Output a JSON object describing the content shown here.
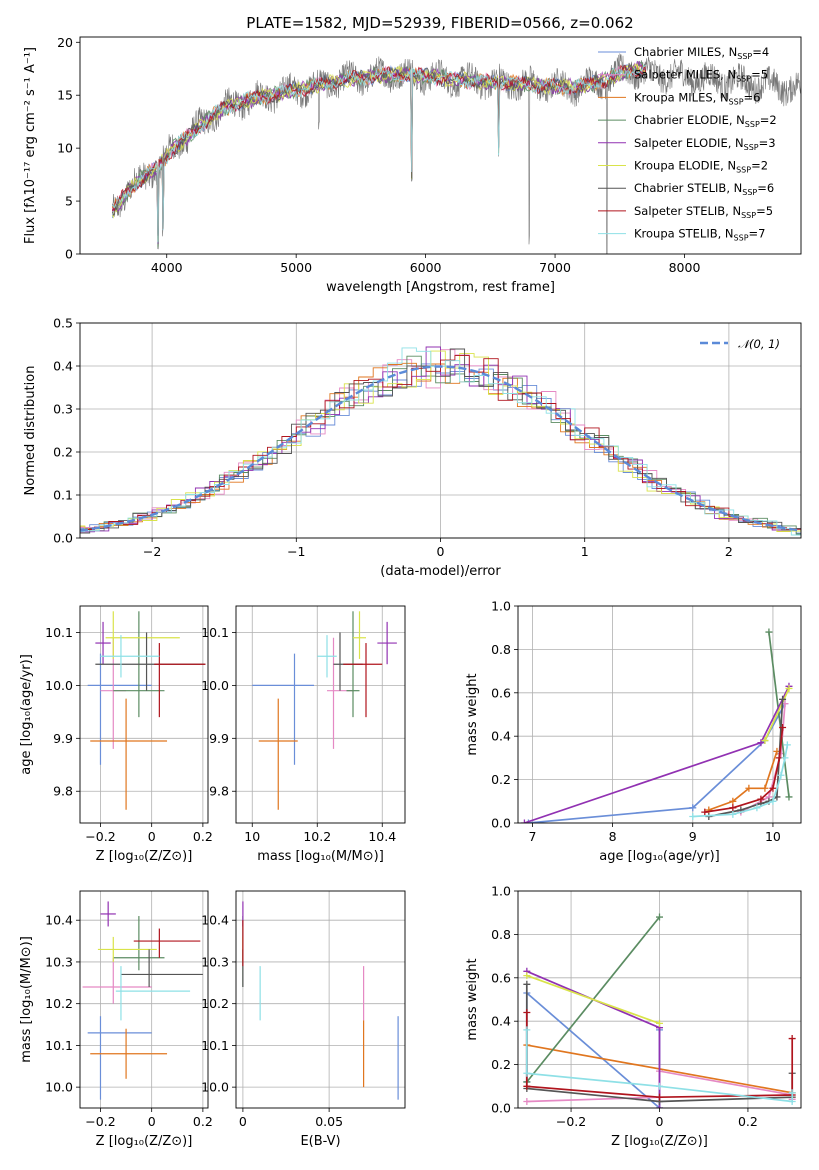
{
  "figure": {
    "title": "PLATE=1582, MJD=52939, FIBERID=0566, z=0.062"
  },
  "series_styles": [
    {
      "name": "Chabrier MILES",
      "color": "#6a8ed8"
    },
    {
      "name": "Salpeter MILES",
      "color": "#e589c4"
    },
    {
      "name": "Kroupa MILES",
      "color": "#e0761f"
    },
    {
      "name": "Chabrier ELODIE",
      "color": "#5b8c62"
    },
    {
      "name": "Salpeter ELODIE",
      "color": "#9131b2"
    },
    {
      "name": "Kroupa ELODIE",
      "color": "#d9e34a"
    },
    {
      "name": "Chabrier STELIB",
      "color": "#555555"
    },
    {
      "name": "Salpeter STELIB",
      "color": "#b0141d"
    },
    {
      "name": "Kroupa STELIB",
      "color": "#8ee0e6"
    }
  ],
  "chart_data": [
    {
      "id": "spectrum",
      "type": "line",
      "xlabel": "wavelength [Angstrom, rest frame]",
      "ylabel": "Flux [fλ10⁻¹⁷ erg cm⁻² s⁻¹ A⁻¹]",
      "xlim": [
        3330,
        8900
      ],
      "ylim": [
        0,
        20.5
      ],
      "xticks": [
        4000,
        5000,
        6000,
        7000,
        8000
      ],
      "yticks": [
        0,
        5,
        10,
        15,
        20
      ],
      "legend": "upper-right",
      "legend_entries": [
        "Chabrier MILES, N_SSP=4",
        "Salpeter MILES, N_SSP=5",
        "Kroupa MILES, N_SSP=6",
        "Chabrier ELODIE, N_SSP=2",
        "Salpeter ELODIE, N_SSP=3",
        "Kroupa ELODIE, N_SSP=2",
        "Chabrier STELIB, N_SSP=6",
        "Salpeter STELIB, N_SSP=5",
        "Kroupa STELIB, N_SSP=7"
      ],
      "continuum": {
        "x": [
          3580,
          3700,
          3850,
          3950,
          4050,
          4200,
          4400,
          4600,
          4800,
          5000,
          5200,
          5400,
          5600,
          5800,
          6000,
          6200,
          6400,
          6600,
          6800,
          7000,
          7200,
          7400,
          7600
        ],
        "y": [
          4.0,
          6.0,
          7.5,
          8.5,
          10.0,
          11.5,
          13.5,
          14.5,
          15.0,
          15.5,
          16.0,
          16.5,
          16.8,
          17.0,
          16.8,
          16.5,
          16.3,
          16.2,
          16.0,
          15.8,
          15.8,
          16.5,
          17.5
        ]
      },
      "observed_range": [
        3580,
        9200
      ],
      "model_range": [
        3580,
        7700
      ],
      "absorption_lines": [
        {
          "x": 3934,
          "y": 0.0
        },
        {
          "x": 3969,
          "y": 1.5
        },
        {
          "x": 5176,
          "y": 11.0
        },
        {
          "x": 5893,
          "y": 6.0
        },
        {
          "x": 6563,
          "y": 9.0
        },
        {
          "x": 6800,
          "y": 0.0
        },
        {
          "x": 7400,
          "y": 0.0
        }
      ]
    },
    {
      "id": "residuals",
      "type": "histogram",
      "xlabel": "(data-model)/error",
      "ylabel": "Normed distribution",
      "xlim": [
        -2.5,
        2.5
      ],
      "ylim": [
        0,
        0.5
      ],
      "xticks": [
        -2,
        -1,
        0,
        1,
        2
      ],
      "yticks": [
        0.0,
        0.1,
        0.2,
        0.3,
        0.4,
        0.5
      ],
      "grid": true,
      "bin_width": 0.1,
      "reference_curve": {
        "name": "N(0,1)",
        "label": "𝒩(0, 1)",
        "mean": 0,
        "sigma": 1,
        "color": "#5b8ad8"
      },
      "legend": "upper-right"
    },
    {
      "id": "age-vs-Z",
      "type": "scatter-errorbar",
      "xlabel": "Z [log₁₀(Z/Z⊙)]",
      "ylabel": "age  [log₁₀(age/yr)]",
      "xlim": [
        -0.28,
        0.22
      ],
      "ylim": [
        9.74,
        10.15
      ],
      "xticks": [
        -0.2,
        0.0,
        0.2
      ],
      "yticks": [
        9.8,
        9.9,
        10.0,
        10.1
      ],
      "grid": true,
      "points": [
        {
          "x": -0.2,
          "xerr": [
            0.05,
            0.2
          ],
          "y": 10.0,
          "yerr": [
            0.15,
            0.06
          ]
        },
        {
          "x": -0.15,
          "xerr": [
            0.05,
            0.05
          ],
          "y": 9.99,
          "yerr": [
            0.11,
            0.1
          ]
        },
        {
          "x": -0.1,
          "xerr": [
            0.14,
            0.16
          ],
          "y": 9.895,
          "yerr": [
            0.13,
            0.08
          ]
        },
        {
          "x": -0.05,
          "xerr": [
            0.1,
            0.1
          ],
          "y": 9.99,
          "yerr": [
            0.05,
            0.15
          ]
        },
        {
          "x": -0.19,
          "xerr": [
            0.03,
            0.03
          ],
          "y": 10.08,
          "yerr": [
            0.04,
            0.04
          ]
        },
        {
          "x": -0.15,
          "xerr": [
            0.03,
            0.26
          ],
          "y": 10.09,
          "yerr": [
            0.04,
            0.05
          ]
        },
        {
          "x": -0.02,
          "xerr": [
            0.2,
            0.23
          ],
          "y": 10.04,
          "yerr": [
            0.05,
            0.06
          ]
        },
        {
          "x": 0.03,
          "xerr": [
            0.02,
            0.18
          ],
          "y": 10.04,
          "yerr": [
            0.1,
            0.04
          ]
        },
        {
          "x": -0.12,
          "xerr": [
            0.08,
            0.15
          ],
          "y": 10.055,
          "yerr": [
            0.04,
            0.04
          ]
        }
      ]
    },
    {
      "id": "age-vs-mass",
      "type": "scatter-errorbar",
      "xlabel": "mass [log₁₀(M/M⊙)]",
      "ylabel": "",
      "xlim": [
        9.95,
        10.47
      ],
      "ylim": [
        9.74,
        10.15
      ],
      "xticks": [
        10.0,
        10.2,
        10.4
      ],
      "yticks": [
        9.8,
        9.9,
        10.0,
        10.1
      ],
      "grid": true,
      "points": [
        {
          "x": 10.13,
          "xerr": [
            0.13,
            0.06
          ],
          "y": 10.0,
          "yerr": [
            0.15,
            0.06
          ]
        },
        {
          "x": 10.25,
          "xerr": [
            0.02,
            0.06
          ],
          "y": 9.99,
          "yerr": [
            0.11,
            0.1
          ]
        },
        {
          "x": 10.08,
          "xerr": [
            0.06,
            0.06
          ],
          "y": 9.895,
          "yerr": [
            0.13,
            0.08
          ]
        },
        {
          "x": 10.31,
          "xerr": [
            0.02,
            0.02
          ],
          "y": 9.99,
          "yerr": [
            0.05,
            0.15
          ]
        },
        {
          "x": 10.415,
          "xerr": [
            0.03,
            0.03
          ],
          "y": 10.08,
          "yerr": [
            0.04,
            0.04
          ]
        },
        {
          "x": 10.33,
          "xerr": [
            0.02,
            0.02
          ],
          "y": 10.09,
          "yerr": [
            0.04,
            0.05
          ]
        },
        {
          "x": 10.27,
          "xerr": [
            0.02,
            0.07
          ],
          "y": 10.04,
          "yerr": [
            0.05,
            0.06
          ]
        },
        {
          "x": 10.35,
          "xerr": [
            0.07,
            0.05
          ],
          "y": 10.04,
          "yerr": [
            0.1,
            0.04
          ]
        },
        {
          "x": 10.23,
          "xerr": [
            0.03,
            0.03
          ],
          "y": 10.055,
          "yerr": [
            0.04,
            0.04
          ]
        }
      ]
    },
    {
      "id": "weight-vs-age",
      "type": "line",
      "xlabel": "age  [log₁₀(age/yr)]",
      "ylabel": "mass weight",
      "xlim": [
        6.82,
        10.35
      ],
      "ylim": [
        0,
        1.0
      ],
      "xticks": [
        7,
        8,
        9,
        10
      ],
      "yticks": [
        0.0,
        0.2,
        0.4,
        0.6,
        0.8,
        1.0
      ],
      "grid": true,
      "series": [
        {
          "name": "Chabrier MILES",
          "x": [
            6.95,
            9.0,
            9.9,
            10.15
          ],
          "y": [
            0.0,
            0.07,
            0.38,
            0.55
          ]
        },
        {
          "name": "Salpeter MILES",
          "x": [
            9.6,
            9.95,
            10.1,
            10.15
          ],
          "y": [
            0.05,
            0.12,
            0.32,
            0.55
          ]
        },
        {
          "name": "Kroupa MILES",
          "x": [
            9.2,
            9.5,
            9.7,
            9.9,
            10.05
          ],
          "y": [
            0.06,
            0.1,
            0.16,
            0.16,
            0.33
          ]
        },
        {
          "name": "Chabrier ELODIE",
          "x": [
            9.95,
            10.2
          ],
          "y": [
            0.88,
            0.12
          ]
        },
        {
          "name": "Salpeter ELODIE",
          "x": [
            6.9,
            9.85,
            10.2
          ],
          "y": [
            0.0,
            0.37,
            0.63
          ]
        },
        {
          "name": "Kroupa ELODIE",
          "x": [
            9.9,
            10.2
          ],
          "y": [
            0.38,
            0.62
          ]
        },
        {
          "name": "Chabrier STELIB",
          "x": [
            9.2,
            9.6,
            9.85,
            9.95,
            10.05,
            10.12
          ],
          "y": [
            0.03,
            0.06,
            0.09,
            0.1,
            0.12,
            0.57
          ]
        },
        {
          "name": "Salpeter STELIB",
          "x": [
            9.15,
            9.5,
            9.85,
            10.0,
            10.08,
            10.12
          ],
          "y": [
            0.05,
            0.07,
            0.11,
            0.16,
            0.3,
            0.44
          ]
        },
        {
          "name": "Kroupa STELIB",
          "x": [
            9.0,
            9.5,
            9.8,
            10.0,
            10.1,
            10.15,
            10.18
          ],
          "y": [
            0.03,
            0.04,
            0.07,
            0.1,
            0.22,
            0.3,
            0.36
          ]
        }
      ]
    },
    {
      "id": "mass-vs-Z",
      "type": "scatter-errorbar",
      "xlabel": "Z [log₁₀(Z/Z⊙)]",
      "ylabel": "mass [log₁₀(M/M⊙)]",
      "xlim": [
        -0.28,
        0.22
      ],
      "ylim": [
        9.95,
        10.47
      ],
      "xticks": [
        -0.2,
        0.0,
        0.2
      ],
      "yticks": [
        10.0,
        10.1,
        10.2,
        10.3,
        10.4
      ],
      "grid": true,
      "points": [
        {
          "x": -0.2,
          "xerr": [
            0.05,
            0.2
          ],
          "y": 10.13,
          "yerr": [
            0.16,
            0.04
          ]
        },
        {
          "x": -0.15,
          "xerr": [
            0.12,
            0.15
          ],
          "y": 10.24,
          "yerr": [
            0.04,
            0.07
          ]
        },
        {
          "x": -0.1,
          "xerr": [
            0.14,
            0.16
          ],
          "y": 10.08,
          "yerr": [
            0.06,
            0.06
          ]
        },
        {
          "x": -0.05,
          "xerr": [
            0.1,
            0.1
          ],
          "y": 10.31,
          "yerr": [
            0.03,
            0.1
          ]
        },
        {
          "x": -0.17,
          "xerr": [
            0.03,
            0.03
          ],
          "y": 10.415,
          "yerr": [
            0.03,
            0.03
          ]
        },
        {
          "x": -0.15,
          "xerr": [
            0.06,
            0.17
          ],
          "y": 10.33,
          "yerr": [
            0.03,
            0.03
          ]
        },
        {
          "x": -0.01,
          "xerr": [
            0.11,
            0.21
          ],
          "y": 10.27,
          "yerr": [
            0.03,
            0.06
          ]
        },
        {
          "x": 0.03,
          "xerr": [
            0.1,
            0.16
          ],
          "y": 10.35,
          "yerr": [
            0.04,
            0.03
          ]
        },
        {
          "x": -0.12,
          "xerr": [
            0.02,
            0.27
          ],
          "y": 10.23,
          "yerr": [
            0.07,
            0.06
          ]
        }
      ]
    },
    {
      "id": "mass-vs-EBV",
      "type": "scatter-errorbar",
      "xlabel": "E(B-V)",
      "ylabel": "",
      "xlim": [
        -0.004,
        0.094
      ],
      "ylim": [
        9.95,
        10.47
      ],
      "xticks": [
        0.0,
        0.05
      ],
      "yticks": [
        10.0,
        10.1,
        10.2,
        10.3,
        10.4
      ],
      "grid": true,
      "points": [
        {
          "x": 0.09,
          "y": 10.08,
          "yerr": [
            0.11,
            0.09
          ]
        },
        {
          "x": 0.07,
          "y": 10.23,
          "yerr": [
            0.07,
            0.06
          ]
        },
        {
          "x": 0.07,
          "y": 10.08,
          "yerr": [
            0.08,
            0.08
          ]
        },
        {
          "x": 0.0,
          "y": 10.31,
          "yerr": [
            0.07,
            0.1
          ]
        },
        {
          "x": 0.0,
          "y": 10.415,
          "yerr": [
            0.03,
            0.03
          ]
        },
        {
          "x": 0.0,
          "y": 10.33,
          "yerr": [
            0.03,
            0.03
          ]
        },
        {
          "x": 0.0,
          "y": 10.27,
          "yerr": [
            0.03,
            0.06
          ]
        },
        {
          "x": 0.0,
          "y": 10.35,
          "yerr": [
            0.06,
            0.05
          ]
        },
        {
          "x": 0.01,
          "y": 10.23,
          "yerr": [
            0.07,
            0.06
          ]
        }
      ]
    },
    {
      "id": "weight-vs-Z",
      "type": "line",
      "xlabel": "Z [log₁₀(Z/Z⊙)]",
      "ylabel": "mass weight",
      "xlim": [
        -0.32,
        0.32
      ],
      "ylim": [
        0,
        1.0
      ],
      "xticks": [
        -0.2,
        0.0,
        0.2
      ],
      "yticks": [
        0.0,
        0.2,
        0.4,
        0.6,
        0.8,
        1.0
      ],
      "grid": true,
      "series": [
        {
          "name": "Chabrier MILES",
          "x": [
            -0.3,
            -0.3,
            0.0,
            0.0
          ],
          "y": [
            0.12,
            0.53,
            0.0,
            0.36
          ]
        },
        {
          "name": "Salpeter MILES",
          "x": [
            -0.3,
            0.0,
            0.0,
            0.3,
            0.3
          ],
          "y": [
            0.03,
            0.05,
            0.17,
            0.06,
            0.04
          ]
        },
        {
          "name": "Kroupa MILES",
          "x": [
            -0.3,
            0.3,
            0.3
          ],
          "y": [
            0.29,
            0.07,
            0.05
          ]
        },
        {
          "name": "Chabrier ELODIE",
          "x": [
            -0.3,
            0.0
          ],
          "y": [
            0.12,
            0.88
          ]
        },
        {
          "name": "Salpeter ELODIE",
          "x": [
            -0.3,
            0.0,
            0.0
          ],
          "y": [
            0.63,
            0.37,
            0.0
          ]
        },
        {
          "name": "Kroupa ELODIE",
          "x": [
            -0.3,
            0.0
          ],
          "y": [
            0.61,
            0.39
          ]
        },
        {
          "name": "Chabrier STELIB",
          "x": [
            -0.3,
            -0.3,
            0.0,
            0.3,
            0.3
          ],
          "y": [
            0.57,
            0.09,
            0.03,
            0.05,
            0.16
          ]
        },
        {
          "name": "Salpeter STELIB",
          "x": [
            -0.3,
            -0.3,
            0.0,
            0.3,
            0.3
          ],
          "y": [
            0.44,
            0.1,
            0.05,
            0.06,
            0.32
          ]
        },
        {
          "name": "Kroupa STELIB",
          "x": [
            -0.3,
            -0.3,
            0.0,
            0.3,
            0.3
          ],
          "y": [
            0.36,
            0.16,
            0.1,
            0.03,
            0.07
          ]
        }
      ]
    }
  ]
}
